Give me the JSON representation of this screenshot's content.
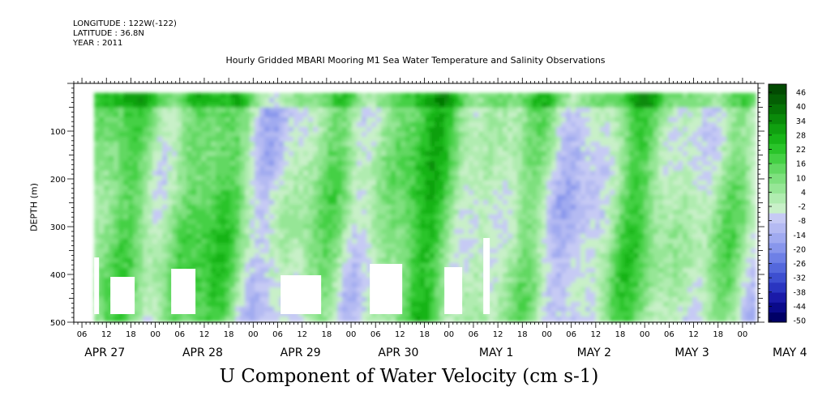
{
  "header": {
    "longitude": "LONGITUDE : 122W(-122)",
    "latitude": "LATITUDE : 36.8N",
    "year": "YEAR : 2011"
  },
  "chart_data": {
    "type": "heatmap",
    "title": "Hourly Gridded MBARI Mooring M1 Sea Water Temperature and Salinity Observations",
    "xlabel": "U Component of Water Velocity (cm s-1)",
    "ylabel": "DEPTH (m)",
    "y_axis": {
      "range": [
        0,
        500
      ],
      "ticks": [
        100,
        200,
        300,
        400,
        500
      ],
      "tick_labels": [
        "100",
        "200",
        "300",
        "400",
        "500"
      ],
      "reversed": true,
      "data_min_depth": 20,
      "data_max_depth": 490
    },
    "x_axis": {
      "hour_tick_labels": [
        "06",
        "12",
        "18",
        "00",
        "06",
        "12",
        "18",
        "00",
        "06",
        "12",
        "18",
        "00",
        "06",
        "12",
        "18",
        "00",
        "06",
        "12",
        "18",
        "00",
        "06",
        "12",
        "18",
        "00",
        "06",
        "12",
        "18",
        "00"
      ],
      "date_labels": [
        {
          "text": "APR 27",
          "day_index": 0
        },
        {
          "text": "APR 28",
          "day_index": 1
        },
        {
          "text": "APR 29",
          "day_index": 2
        },
        {
          "text": "APR 30",
          "day_index": 3
        },
        {
          "text": "MAY  1",
          "day_index": 4
        },
        {
          "text": "MAY  2",
          "day_index": 5
        },
        {
          "text": "MAY  3",
          "day_index": 6
        },
        {
          "text": "MAY  4",
          "day_index": 7
        }
      ],
      "data_start_hour_offset": 9
    },
    "colorbar": {
      "labels": [
        "46",
        "40",
        "34",
        "28",
        "22",
        "16",
        "10",
        "4",
        "-2",
        "-8",
        "-14",
        "-20",
        "-26",
        "-32",
        "-38",
        "-44",
        "-50"
      ],
      "range": [
        -50,
        49
      ],
      "step": 3,
      "colors_hex": [
        "#000066",
        "#0a0a8a",
        "#1a1aa8",
        "#2a35c0",
        "#3d4fd0",
        "#5468dc",
        "#6e80e6",
        "#8896ec",
        "#a0aaf0",
        "#b4baf2",
        "#c6caf4",
        "#c8f0c8",
        "#b0ecb0",
        "#96e696",
        "#7ee07e",
        "#62d862",
        "#44d044",
        "#2ac42a",
        "#18b418",
        "#10a010",
        "#0a8a0a",
        "#067406",
        "#045e04",
        "#024a02"
      ]
    },
    "summary": "U velocity vs depth and time: alternating green (positive) and blue/purple (negative) vertical bands from Apr 27 to May 4 2011."
  }
}
